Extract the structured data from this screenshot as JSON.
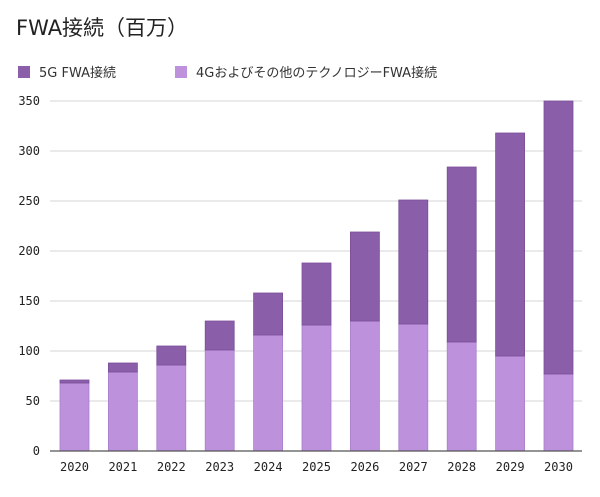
{
  "chart_data": {
    "type": "bar",
    "stacked": true,
    "title": "FWA接続（百万）",
    "categories": [
      "2020",
      "2021",
      "2022",
      "2023",
      "2024",
      "2025",
      "2026",
      "2027",
      "2028",
      "2029",
      "2030"
    ],
    "series": [
      {
        "name": "4Gおよびその他のテクノロジーFWA接続",
        "color": "#bd91dc",
        "values": [
          68,
          79,
          86,
          101,
          116,
          126,
          130,
          127,
          109,
          95,
          77
        ]
      },
      {
        "name": "5G FWA接続",
        "color": "#8a5ea8",
        "values": [
          3,
          9,
          19,
          29,
          42,
          62,
          89,
          124,
          175,
          223,
          273
        ]
      }
    ],
    "ylim": [
      0,
      350
    ],
    "yticks": [
      0,
      50,
      100,
      150,
      200,
      250,
      300,
      350
    ],
    "grid": true,
    "legend": "top-left"
  }
}
